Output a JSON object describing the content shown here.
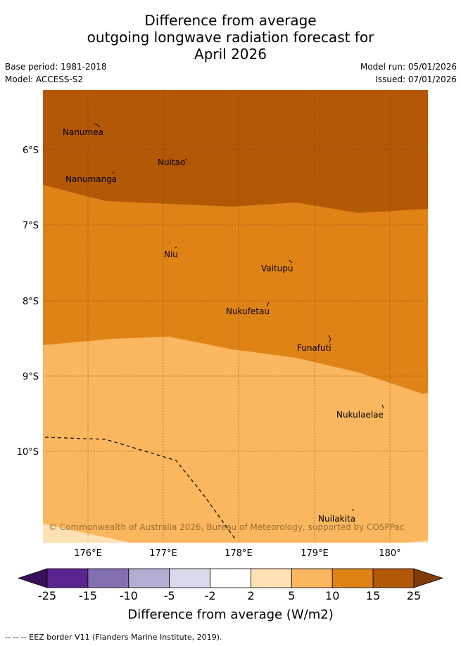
{
  "header": {
    "title_line1": "Difference from average",
    "title_line2": "outgoing longwave radiation forecast for",
    "title_line3": "April 2026",
    "base_period": "Base period: 1981-2018",
    "model": "Model: ACCESS-S2",
    "model_run": "Model run: 05/01/2026",
    "issued": "Issued: 07/01/2026"
  },
  "map": {
    "lat_labels": [
      "6°S",
      "7°S",
      "8°S",
      "9°S",
      "10°S"
    ],
    "lon_labels": [
      "176°E",
      "177°E",
      "178°E",
      "179°E",
      "180°"
    ],
    "places": [
      "Nanumea",
      "Nuitao",
      "Nanumanga",
      "Niu",
      "Vaitupu",
      "Nukufetau",
      "Funafuti",
      "Nukulaelae",
      "Nuilakita"
    ],
    "copyright": "© Commonwealth of Australia 2026, Bureau of Meteorology, supported by COSPPac"
  },
  "colorbar": {
    "ticks": [
      "-25",
      "-15",
      "-10",
      "-5",
      "-2",
      "2",
      "5",
      "10",
      "15",
      "25"
    ],
    "colors": [
      "#3b0f5b",
      "#5a2590",
      "#8370b0",
      "#b3acd3",
      "#d9d9ec",
      "#ffffff",
      "#fde0b3",
      "#fbb75f",
      "#e08317",
      "#b35806",
      "#7f3b08"
    ],
    "label": "Difference from average (W/m2)"
  },
  "footer": {
    "legend_text": "--  --  -- EEZ border V11 (Flanders Marine Institute, 2019)."
  }
}
